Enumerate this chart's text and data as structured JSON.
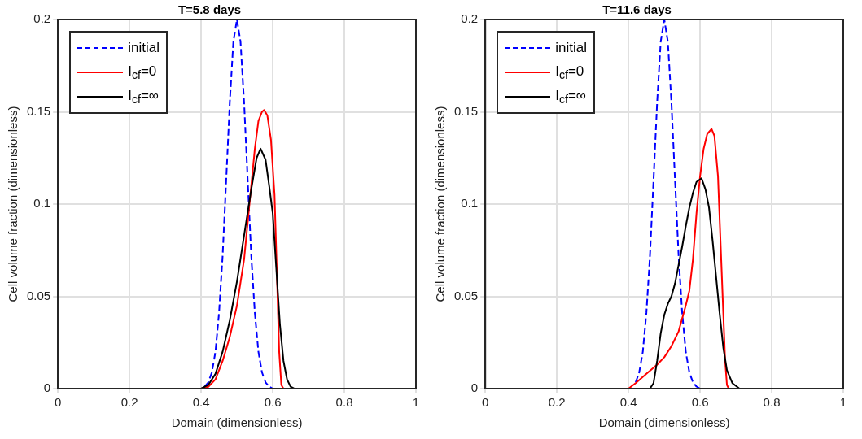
{
  "chart_data": [
    {
      "type": "line",
      "title": "T=5.8 days",
      "xlabel": "Domain (dimensionless)",
      "ylabel": "Cell volume fraction (dimensionless)",
      "xlim": [
        0,
        1
      ],
      "xticks": [
        0,
        0.2,
        0.4,
        0.6,
        0.8,
        1
      ],
      "ylim": [
        0,
        0.2
      ],
      "yticks": [
        0,
        0.05,
        0.1,
        0.15,
        0.2
      ],
      "grid": true,
      "legend": "top left",
      "marker": "none",
      "series": [
        {
          "name": "initial",
          "color": "#0000ff",
          "line_style": "dashed",
          "x": [
            0.41,
            0.42,
            0.43,
            0.44,
            0.45,
            0.46,
            0.47,
            0.48,
            0.49,
            0.5,
            0.51,
            0.52,
            0.53,
            0.54,
            0.55,
            0.56,
            0.57,
            0.58,
            0.59,
            0.6
          ],
          "values": [
            0.0011,
            0.0034,
            0.0088,
            0.02,
            0.041,
            0.072,
            0.113,
            0.155,
            0.188,
            0.2,
            0.188,
            0.155,
            0.113,
            0.072,
            0.041,
            0.02,
            0.0088,
            0.0034,
            0.0011,
            0
          ]
        },
        {
          "name": "I$_{cf}$=0",
          "color": "#ff0000",
          "line_style": "solid",
          "x": [
            0,
            0.4,
            0.42,
            0.44,
            0.46,
            0.48,
            0.5,
            0.52,
            0.54,
            0.55,
            0.56,
            0.57,
            0.576,
            0.585,
            0.595,
            0.605,
            0.612,
            0.618,
            0.624,
            0.63,
            1
          ],
          "values": [
            0,
            0,
            0.001,
            0.005,
            0.015,
            0.028,
            0.045,
            0.07,
            0.11,
            0.13,
            0.145,
            0.15,
            0.151,
            0.148,
            0.135,
            0.105,
            0.06,
            0.02,
            0.002,
            0,
            0
          ]
        },
        {
          "name": "I$_{cf}$=∞",
          "color": "#000000",
          "line_style": "solid",
          "x": [
            0,
            0.4,
            0.42,
            0.44,
            0.46,
            0.48,
            0.5,
            0.52,
            0.54,
            0.555,
            0.566,
            0.58,
            0.59,
            0.6,
            0.61,
            0.62,
            0.63,
            0.64,
            0.65,
            0.66,
            1
          ],
          "values": [
            0,
            0,
            0.002,
            0.008,
            0.02,
            0.037,
            0.058,
            0.083,
            0.108,
            0.125,
            0.13,
            0.124,
            0.11,
            0.095,
            0.065,
            0.035,
            0.015,
            0.005,
            0.001,
            0,
            0
          ]
        }
      ]
    },
    {
      "type": "line",
      "title": "T=11.6 days",
      "xlabel": "Domain (dimensionless)",
      "ylabel": "Cell volume fraction (dimensionless)",
      "xlim": [
        0,
        1
      ],
      "xticks": [
        0,
        0.2,
        0.4,
        0.6,
        0.8,
        1
      ],
      "ylim": [
        0,
        0.2
      ],
      "yticks": [
        0,
        0.05,
        0.1,
        0.15,
        0.2
      ],
      "grid": true,
      "legend": "top left",
      "marker": "none",
      "series": [
        {
          "name": "initial",
          "color": "#0000ff",
          "line_style": "dashed",
          "x": [
            0.42,
            0.43,
            0.44,
            0.45,
            0.46,
            0.47,
            0.48,
            0.49,
            0.5,
            0.51,
            0.52,
            0.53,
            0.54,
            0.55,
            0.56,
            0.57,
            0.58,
            0.59,
            0.6
          ],
          "values": [
            0.0034,
            0.0088,
            0.02,
            0.041,
            0.072,
            0.113,
            0.155,
            0.188,
            0.2,
            0.188,
            0.155,
            0.113,
            0.072,
            0.041,
            0.02,
            0.0088,
            0.0034,
            0.0011,
            0
          ]
        },
        {
          "name": "I$_{cf}$=0",
          "color": "#ff0000",
          "line_style": "solid",
          "x": [
            0,
            0.4,
            0.42,
            0.45,
            0.48,
            0.5,
            0.52,
            0.54,
            0.55,
            0.56,
            0.57,
            0.58,
            0.59,
            0.6,
            0.61,
            0.62,
            0.632,
            0.64,
            0.65,
            0.655,
            0.66,
            0.665,
            0.67,
            0.675,
            0.68,
            1
          ],
          "values": [
            0,
            0,
            0.003,
            0.008,
            0.013,
            0.017,
            0.023,
            0.031,
            0.038,
            0.045,
            0.053,
            0.07,
            0.095,
            0.115,
            0.13,
            0.138,
            0.1407,
            0.137,
            0.115,
            0.09,
            0.065,
            0.04,
            0.015,
            0.002,
            0,
            0
          ]
        },
        {
          "name": "I$_{cf}$=∞",
          "color": "#000000",
          "line_style": "solid",
          "x": [
            0,
            0.46,
            0.47,
            0.48,
            0.49,
            0.5,
            0.51,
            0.52,
            0.53,
            0.54,
            0.55,
            0.56,
            0.57,
            0.58,
            0.59,
            0.604,
            0.615,
            0.625,
            0.635,
            0.645,
            0.655,
            0.665,
            0.675,
            0.69,
            0.71,
            1
          ],
          "values": [
            0,
            0,
            0.003,
            0.015,
            0.03,
            0.04,
            0.046,
            0.05,
            0.057,
            0.067,
            0.077,
            0.088,
            0.098,
            0.106,
            0.112,
            0.114,
            0.108,
            0.098,
            0.08,
            0.06,
            0.04,
            0.022,
            0.01,
            0.003,
            0,
            0
          ]
        }
      ]
    }
  ]
}
